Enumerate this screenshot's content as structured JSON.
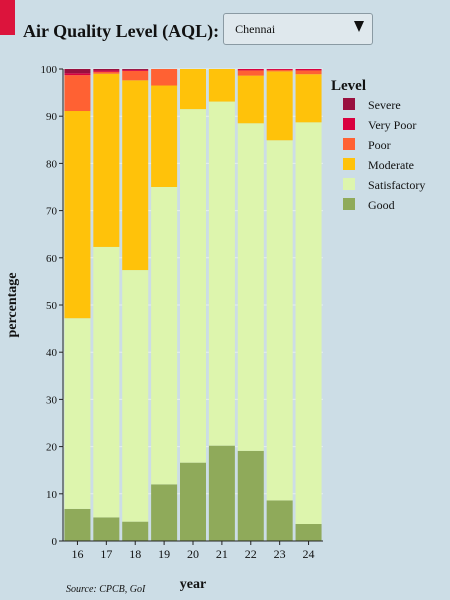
{
  "header": {
    "title": "Air Quality Level (AQL):",
    "selected_city": "Chennai"
  },
  "source": "Source: CPCB, GoI",
  "chart_data": {
    "type": "bar",
    "stacked": true,
    "xlabel": "year",
    "ylabel": "percentage",
    "ylim": [
      0,
      100
    ],
    "yticks": [
      0,
      10,
      20,
      30,
      40,
      50,
      60,
      70,
      80,
      90,
      100
    ],
    "grid": true,
    "legend_title": "Level",
    "legend_position": "right",
    "categories": [
      "16",
      "17",
      "18",
      "19",
      "20",
      "21",
      "22",
      "23",
      "24"
    ],
    "series": [
      {
        "name": "Good",
        "color": "#8faa5a",
        "values": [
          6.8,
          5.0,
          4.1,
          12.0,
          16.6,
          20.2,
          19.1,
          8.6,
          3.6
        ]
      },
      {
        "name": "Satisfactory",
        "color": "#ddf5ad",
        "values": [
          40.4,
          57.3,
          53.3,
          63.0,
          74.9,
          72.9,
          69.4,
          76.3,
          85.1
        ]
      },
      {
        "name": "Moderate",
        "color": "#ffc20a",
        "values": [
          43.9,
          36.7,
          40.2,
          21.5,
          8.5,
          6.9,
          10.1,
          14.6,
          10.2
        ]
      },
      {
        "name": "Poor",
        "color": "#ff6133",
        "values": [
          7.6,
          0.4,
          2.0,
          3.5,
          0,
          0,
          1.1,
          0.3,
          0.8
        ]
      },
      {
        "name": "Very Poor",
        "color": "#d9003f",
        "values": [
          0.4,
          0.3,
          0.2,
          0,
          0,
          0,
          0.3,
          0.2,
          0.3
        ]
      },
      {
        "name": "Severe",
        "color": "#99103f",
        "values": [
          0.9,
          0.3,
          0.2,
          0,
          0,
          0,
          0,
          0,
          0
        ]
      }
    ]
  }
}
